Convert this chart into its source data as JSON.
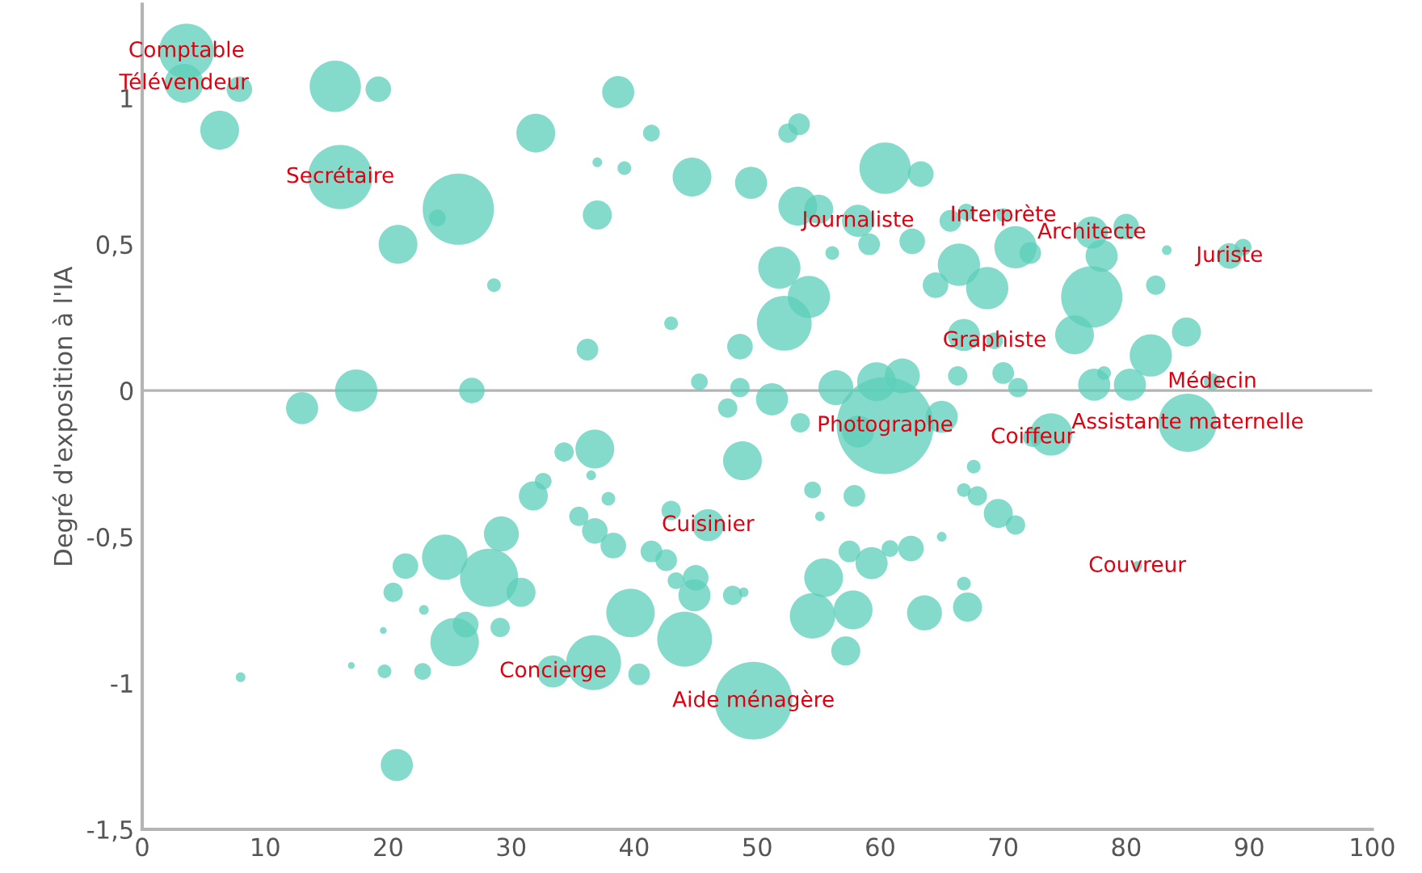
{
  "chart_data": {
    "type": "bubble",
    "ylabel": "Degré d'exposition à l'IA",
    "xlim": [
      0,
      100
    ],
    "xticks": [
      0,
      10,
      20,
      30,
      40,
      50,
      60,
      70,
      80,
      90,
      100
    ],
    "ylim": [
      -1.5,
      1.32
    ],
    "yticks": [
      {
        "value": -1.5,
        "label": "-1,5"
      },
      {
        "value": -1,
        "label": "-1"
      },
      {
        "value": -0.5,
        "label": "-0,5"
      },
      {
        "value": 0,
        "label": "0"
      },
      {
        "value": 0.5,
        "label": "0,5"
      },
      {
        "value": 1,
        "label": "1"
      }
    ],
    "grid": false,
    "legend": false,
    "ref_lines": [
      {
        "axis": "y",
        "value": 0,
        "color": "#b4b4b4"
      }
    ],
    "series": [
      {
        "color": "#5ccfb9",
        "x": [
          3.6,
          3.4,
          7.9,
          6.3,
          15.7,
          19.2,
          16.1,
          25.7,
          24,
          20.8,
          28.6,
          32,
          38.7,
          41.4,
          37,
          39.2,
          44.7,
          37,
          43,
          36.2,
          17.4,
          13,
          26.8,
          45.3,
          53.4,
          52.5,
          49.5,
          60.4,
          63.3,
          53.3,
          55,
          58.2,
          59.1,
          62.6,
          65.7,
          67,
          70,
          51.8,
          54.2,
          52.2,
          56.1,
          66.4,
          64.5,
          68.7,
          71,
          72.2,
          77.2,
          80,
          78,
          77.2,
          83.3,
          82.4,
          88.4,
          89.5,
          66.8,
          69.3,
          75.8,
          84.9,
          82,
          48.6,
          48.6,
          59.7,
          61.8,
          66.3,
          70,
          71.2,
          77.4,
          80.3,
          78.2,
          87,
          56.4,
          51.2,
          47.6,
          60.4,
          58.2,
          65,
          73.9,
          72.4,
          85,
          53.5,
          36.8,
          34.3,
          36.5,
          37.9,
          31.8,
          32.6,
          35.5,
          36.8,
          38.3,
          41.4,
          29.2,
          24.6,
          21.4,
          28.2,
          30.8,
          20.4,
          22.9,
          19.6,
          25.4,
          26.3,
          29.1,
          19.7,
          22.8,
          17,
          8,
          20.7,
          39.7,
          36.7,
          33.4,
          40.4,
          44.1,
          44.9,
          43,
          46,
          43.4,
          42.6,
          48.8,
          54.5,
          57.9,
          55.1,
          67.6,
          66.8,
          67.9,
          69.6,
          71,
          57.5,
          59.3,
          60.8,
          62.5,
          65,
          55.4,
          54.5,
          57.8,
          57.2,
          63.6,
          67.1,
          66.8,
          48.9,
          49.7,
          80.9,
          45,
          48
        ],
        "values": [
          1.16,
          1.05,
          1.03,
          0.89,
          1.04,
          1.03,
          0.73,
          0.62,
          0.59,
          0.5,
          0.36,
          0.88,
          1.02,
          0.88,
          0.78,
          0.76,
          0.73,
          0.6,
          0.23,
          0.14,
          0.0,
          -0.06,
          0,
          0.03,
          0.91,
          0.88,
          0.71,
          0.76,
          0.74,
          0.63,
          0.62,
          0.58,
          0.5,
          0.51,
          0.58,
          0.61,
          0.6,
          0.42,
          0.32,
          0.23,
          0.47,
          0.43,
          0.36,
          0.35,
          0.49,
          0.47,
          0.54,
          0.56,
          0.46,
          0.32,
          0.48,
          0.36,
          0.46,
          0.49,
          0.19,
          0.17,
          0.19,
          0.2,
          0.12,
          0.15,
          0.01,
          0.03,
          0.05,
          0.05,
          0.06,
          0.01,
          0.02,
          0.02,
          0.06,
          0.03,
          0.01,
          -0.03,
          -0.06,
          -0.12,
          -0.14,
          -0.09,
          -0.15,
          -0.16,
          -0.11,
          -0.11,
          -0.2,
          -0.21,
          -0.29,
          -0.37,
          -0.36,
          -0.31,
          -0.43,
          -0.48,
          -0.53,
          -0.55,
          -0.49,
          -0.57,
          -0.6,
          -0.64,
          -0.69,
          -0.69,
          -0.75,
          -0.82,
          -0.86,
          -0.8,
          -0.81,
          -0.96,
          -0.96,
          -0.94,
          -0.98,
          -1.28,
          -0.76,
          -0.93,
          -0.96,
          -0.97,
          -0.85,
          -0.7,
          -0.41,
          -0.46,
          -0.65,
          -0.58,
          -0.24,
          -0.34,
          -0.36,
          -0.43,
          -0.26,
          -0.34,
          -0.36,
          -0.42,
          -0.46,
          -0.55,
          -0.59,
          -0.54,
          -0.54,
          -0.5,
          -0.64,
          -0.77,
          -0.75,
          -0.89,
          -0.76,
          -0.74,
          -0.66,
          -0.69,
          -1.06,
          -0.6,
          -0.64,
          -0.7
        ],
        "sizes": [
          0.32,
          0.16,
          0.07,
          0.16,
          0.28,
          0.07,
          0.44,
          0.54,
          0.03,
          0.16,
          0.02,
          0.16,
          0.11,
          0.03,
          0.01,
          0.02,
          0.16,
          0.09,
          0.02,
          0.05,
          0.19,
          0.11,
          0.07,
          0.03,
          0.05,
          0.04,
          0.11,
          0.28,
          0.07,
          0.16,
          0.09,
          0.11,
          0.05,
          0.07,
          0.05,
          0.03,
          0.02,
          0.19,
          0.19,
          0.32,
          0.02,
          0.19,
          0.07,
          0.19,
          0.19,
          0.05,
          0.11,
          0.07,
          0.11,
          0.4,
          0.01,
          0.04,
          0.07,
          0.03,
          0.11,
          0.03,
          0.16,
          0.09,
          0.19,
          0.07,
          0.04,
          0.16,
          0.13,
          0.04,
          0.05,
          0.04,
          0.11,
          0.11,
          0.02,
          0.03,
          0.13,
          0.11,
          0.04,
          1.0,
          0.11,
          0.11,
          0.19,
          0.04,
          0.36,
          0.04,
          0.16,
          0.04,
          0.01,
          0.02,
          0.09,
          0.03,
          0.04,
          0.07,
          0.07,
          0.05,
          0.13,
          0.22,
          0.07,
          0.36,
          0.09,
          0.04,
          0.01,
          0.005,
          0.25,
          0.07,
          0.04,
          0.02,
          0.03,
          0.005,
          0.01,
          0.11,
          0.25,
          0.32,
          0.11,
          0.05,
          0.32,
          0.11,
          0.04,
          0.11,
          0.03,
          0.05,
          0.16,
          0.03,
          0.05,
          0.01,
          0.02,
          0.02,
          0.04,
          0.09,
          0.04,
          0.05,
          0.11,
          0.03,
          0.07,
          0.01,
          0.16,
          0.22,
          0.16,
          0.09,
          0.13,
          0.09,
          0.02,
          0.01,
          0.64,
          0.01,
          0.07,
          0.04
        ]
      }
    ],
    "annotations": [
      {
        "text": "Comptable",
        "x": 3.6,
        "y": 1.16
      },
      {
        "text": "Télévendeur",
        "x": 3.4,
        "y": 1.05
      },
      {
        "text": "Secrétaire",
        "x": 16.1,
        "y": 0.73
      },
      {
        "text": "Journaliste",
        "x": 58.2,
        "y": 0.58
      },
      {
        "text": "Interprète",
        "x": 70,
        "y": 0.6
      },
      {
        "text": "Architecte",
        "x": 77.2,
        "y": 0.54
      },
      {
        "text": "Juriste",
        "x": 88.4,
        "y": 0.46
      },
      {
        "text": "Graphiste",
        "x": 69.3,
        "y": 0.17
      },
      {
        "text": "Médecin",
        "x": 87,
        "y": 0.03
      },
      {
        "text": "Photographe",
        "x": 60.4,
        "y": -0.12
      },
      {
        "text": "Coiffeur",
        "x": 72.4,
        "y": -0.16
      },
      {
        "text": "Assistante maternelle",
        "x": 85,
        "y": -0.11
      },
      {
        "text": "Cuisinier",
        "x": 46,
        "y": -0.46
      },
      {
        "text": "Couvreur",
        "x": 80.9,
        "y": -0.6
      },
      {
        "text": "Concierge",
        "x": 33.4,
        "y": -0.96
      },
      {
        "text": "Aide ménagère",
        "x": 49.7,
        "y": -1.06
      }
    ]
  }
}
